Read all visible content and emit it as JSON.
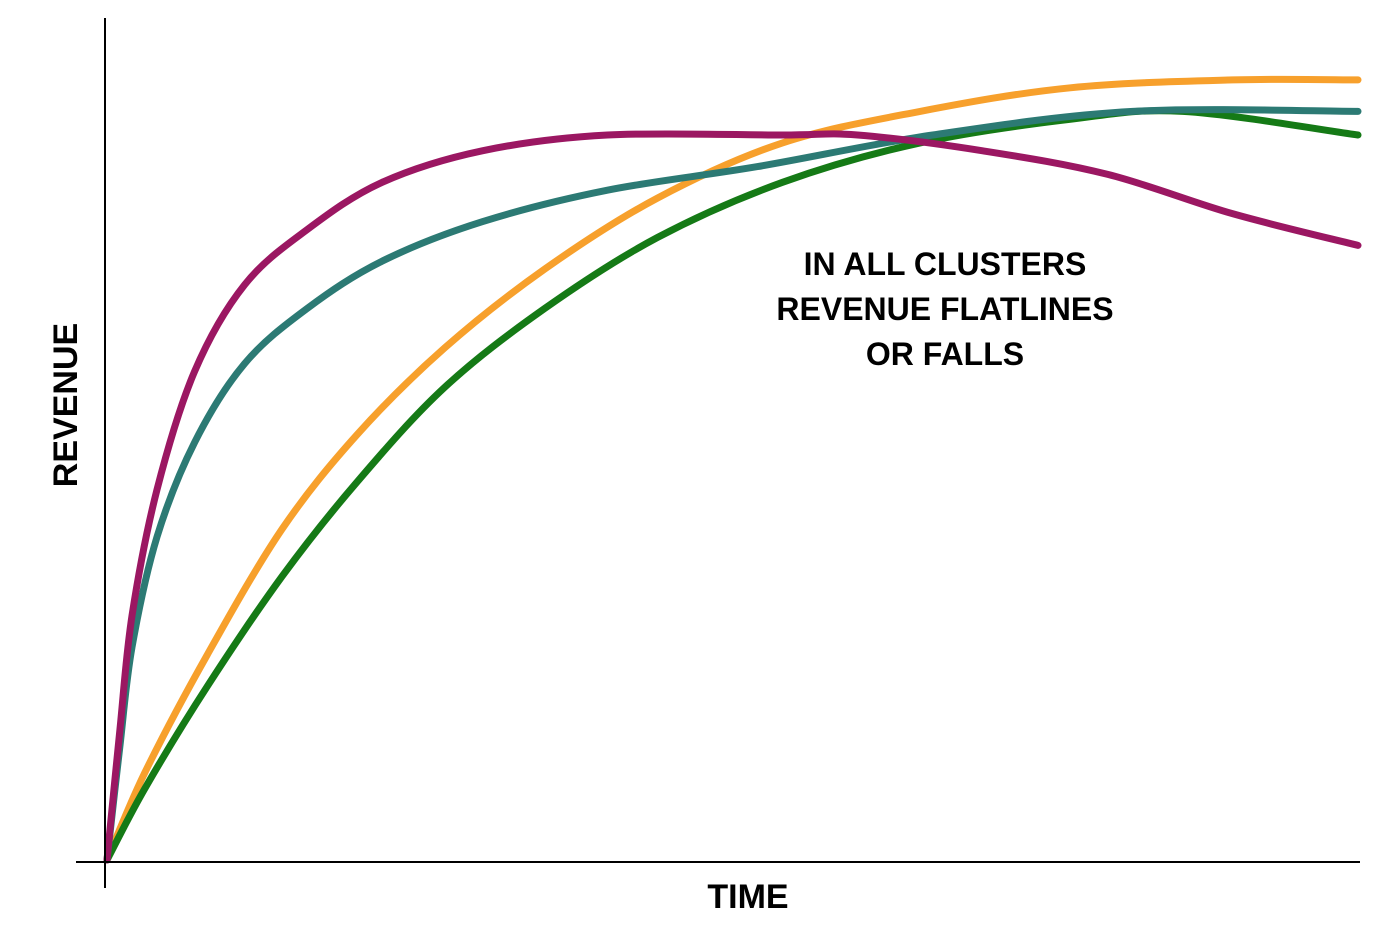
{
  "chart_data": {
    "type": "line",
    "title": "",
    "xlabel": "TIME",
    "ylabel": "REVENUE",
    "xlim": [
      0,
      100
    ],
    "ylim": [
      0,
      100
    ],
    "grid": false,
    "legend": "none",
    "annotation": {
      "lines": [
        "IN ALL CLUSTERS",
        "REVENUE FLATLINES",
        "OR FALLS"
      ]
    },
    "series": [
      {
        "color": "#f7a02c",
        "x": [
          0,
          3,
          8,
          14,
          20,
          27,
          35,
          44,
          54,
          65,
          77,
          90,
          100
        ],
        "y": [
          0,
          11,
          26,
          42,
          54,
          65,
          75,
          84,
          91,
          95,
          98,
          99,
          99
        ]
      },
      {
        "color": "#157a16",
        "x": [
          0,
          3,
          8,
          14,
          20,
          27,
          35,
          44,
          54,
          65,
          77,
          86,
          100
        ],
        "y": [
          0,
          9,
          22,
          36,
          48,
          60,
          70,
          79,
          86,
          91,
          94,
          95,
          92
        ]
      },
      {
        "color": "#2c7a74",
        "x": [
          0,
          1,
          2,
          4,
          7,
          11,
          16,
          22,
          30,
          40,
          52,
          66,
          82,
          100
        ],
        "y": [
          0,
          14,
          27,
          41,
          53,
          63,
          70,
          76,
          81,
          85,
          88,
          92,
          95,
          95
        ]
      },
      {
        "color": "#9b1762",
        "x": [
          0,
          1,
          2,
          4,
          7,
          11,
          16,
          22,
          30,
          40,
          54,
          60,
          70,
          80,
          90,
          100
        ],
        "y": [
          0,
          16,
          31,
          47,
          62,
          73,
          80,
          86,
          90,
          92,
          92,
          92,
          90,
          87,
          82,
          78
        ]
      }
    ]
  }
}
